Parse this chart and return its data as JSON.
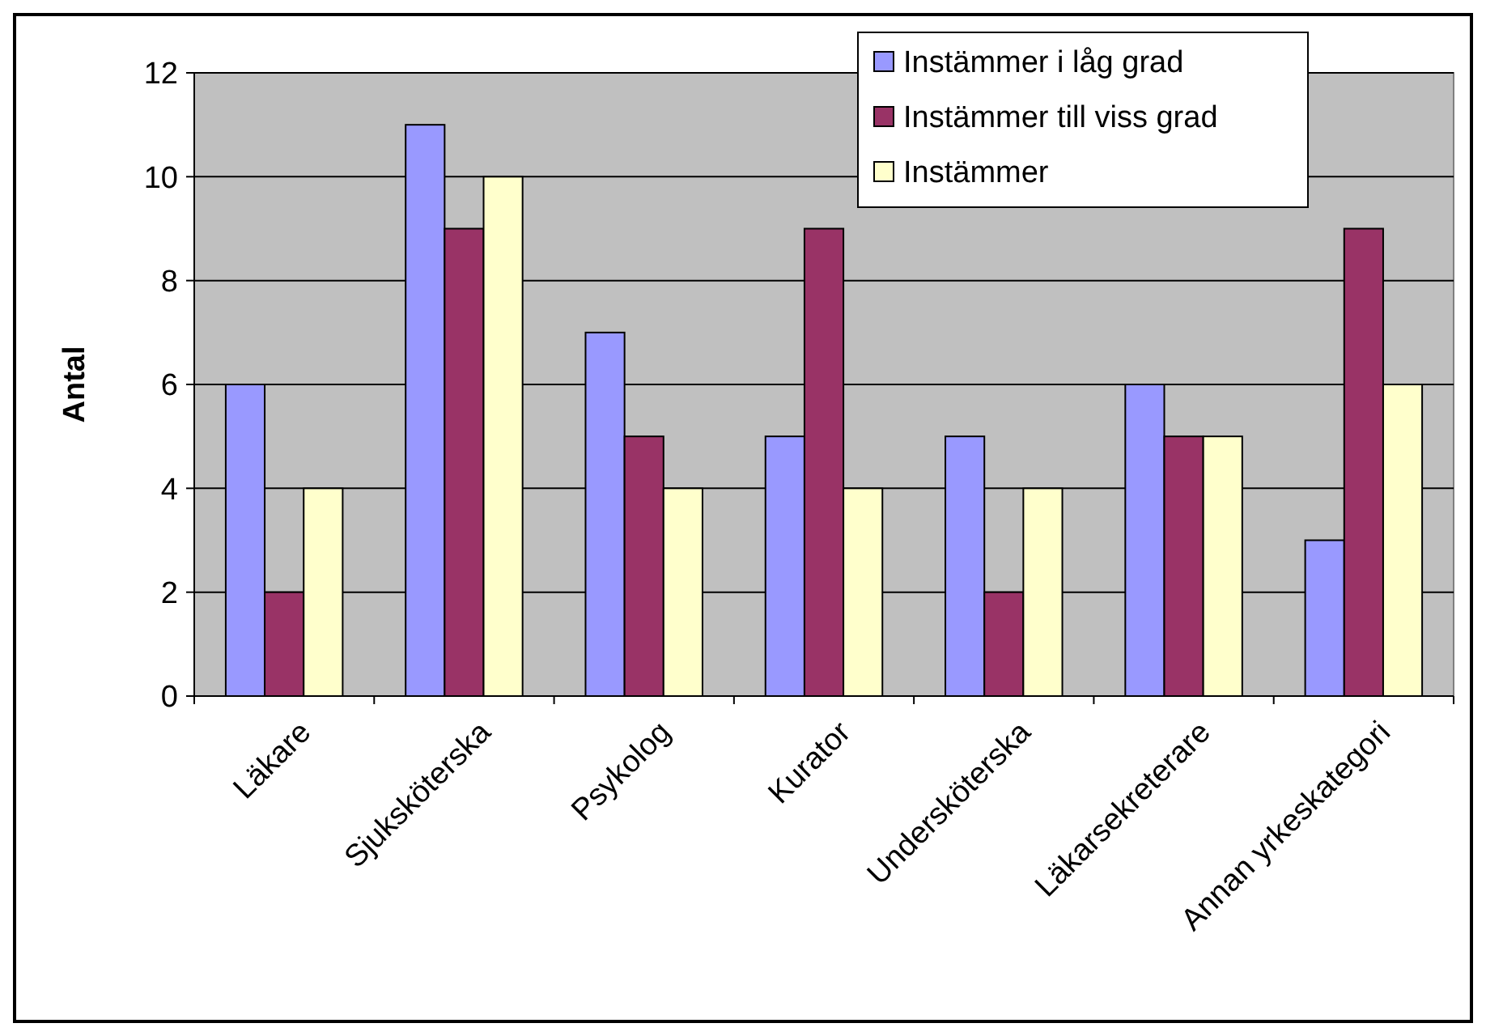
{
  "chart_data": {
    "type": "bar",
    "ylabel": "Antal",
    "categories": [
      "Läkare",
      "Sjuksköterska",
      "Psykolog",
      "Kurator",
      "Undersköterska",
      "Läkarsekreterare",
      "Annan yrkeskategori"
    ],
    "series": [
      {
        "name": "Instämmer i låg grad",
        "color": "#9999ff",
        "values": [
          6,
          11,
          7,
          5,
          5,
          6,
          3
        ]
      },
      {
        "name": "Instämmer till viss grad",
        "color": "#993366",
        "values": [
          2,
          9,
          5,
          9,
          2,
          5,
          9
        ]
      },
      {
        "name": "Instämmer",
        "color": "#ffffcc",
        "values": [
          4,
          10,
          4,
          4,
          4,
          5,
          6
        ]
      }
    ],
    "ylim": [
      0,
      12
    ],
    "yticks": [
      0,
      2,
      4,
      6,
      8,
      10,
      12
    ],
    "grid": "y",
    "legend": "top right"
  }
}
